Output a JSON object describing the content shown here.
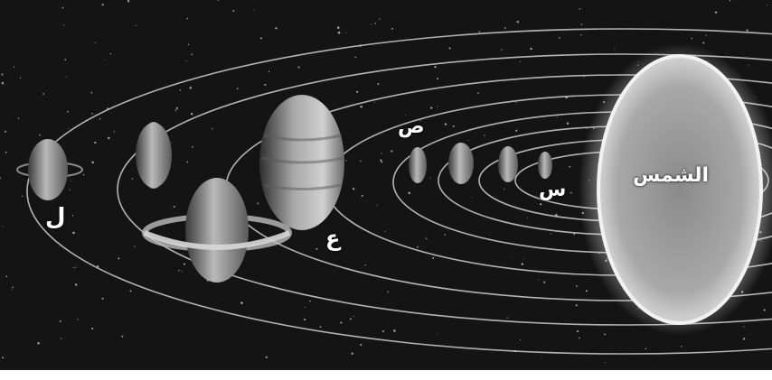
{
  "figure": {
    "labels": {
      "sun": "الشمس",
      "planet_s": "س",
      "planet_sad": "ص",
      "planet_ain": "ع",
      "planet_lam": "ل"
    }
  }
}
